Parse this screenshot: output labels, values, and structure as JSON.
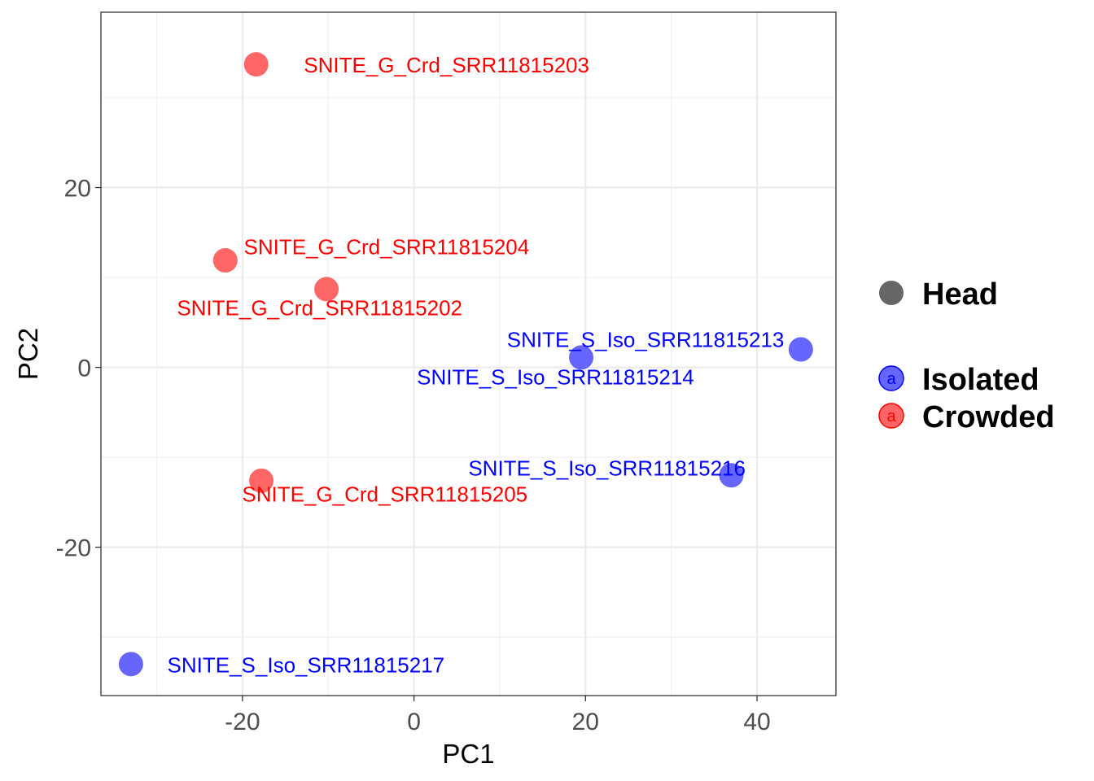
{
  "chart_data": {
    "type": "scatter",
    "title": "",
    "xlabel": "PC1",
    "ylabel": "PC2",
    "xlim": [
      -36.5,
      49.2
    ],
    "ylim": [
      -36.5,
      39.5
    ],
    "x_ticks": [
      -20,
      0,
      20,
      40
    ],
    "y_ticks": [
      -20,
      0,
      20
    ],
    "x_tick_labels": [
      "-20",
      "0",
      "20",
      "40"
    ],
    "y_tick_labels": [
      "-20",
      "0",
      "20"
    ],
    "grid": true,
    "legend_position": "right",
    "colors": {
      "Isolated": "#6666ff",
      "Crowded": "#ff6666"
    },
    "label_colors": {
      "Isolated": "#0000ff",
      "Crowded": "#ff0000"
    },
    "shape_legend": [
      {
        "label": "Head",
        "color": "#666666"
      }
    ],
    "color_legend": [
      {
        "label": "Isolated",
        "glyph": "a"
      },
      {
        "label": "Crowded",
        "glyph": "a"
      }
    ],
    "points": [
      {
        "label": "SNITE_G_Crd_SRR11815203",
        "group": "Crowded",
        "x": -18.4,
        "y": 33.7,
        "label_x": 3.8,
        "label_y": 33.6
      },
      {
        "label": "SNITE_G_Crd_SRR11815204",
        "group": "Crowded",
        "x": -22.0,
        "y": 11.9,
        "label_x": -3.2,
        "label_y": 13.4
      },
      {
        "label": "SNITE_G_Crd_SRR11815202",
        "group": "Crowded",
        "x": -10.2,
        "y": 8.7,
        "label_x": -11.0,
        "label_y": 6.6
      },
      {
        "label": "SNITE_G_Crd_SRR11815205",
        "group": "Crowded",
        "x": -17.8,
        "y": -12.6,
        "label_x": -3.4,
        "label_y": -14.1
      },
      {
        "label": "SNITE_S_Iso_SRR11815213",
        "group": "Isolated",
        "x": 45.1,
        "y": 2.0,
        "label_x": 27.0,
        "label_y": 3.1
      },
      {
        "label": "SNITE_S_Iso_SRR11815214",
        "group": "Isolated",
        "x": 19.5,
        "y": 1.1,
        "label_x": 16.5,
        "label_y": -1.1
      },
      {
        "label": "SNITE_S_Iso_SRR11815216",
        "group": "Isolated",
        "x": 37.0,
        "y": -12.0,
        "label_x": 22.5,
        "label_y": -11.2
      },
      {
        "label": "SNITE_S_Iso_SRR11815217",
        "group": "Isolated",
        "x": -33.0,
        "y": -33.0,
        "label_x": -12.6,
        "label_y": -33.1
      }
    ]
  }
}
